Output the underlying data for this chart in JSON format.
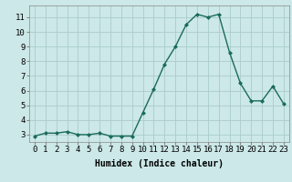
{
  "x": [
    0,
    1,
    2,
    3,
    4,
    5,
    6,
    7,
    8,
    9,
    10,
    11,
    12,
    13,
    14,
    15,
    16,
    17,
    18,
    19,
    20,
    21,
    22,
    23
  ],
  "y": [
    2.9,
    3.1,
    3.1,
    3.2,
    3.0,
    3.0,
    3.1,
    2.9,
    2.9,
    2.9,
    4.5,
    6.1,
    7.8,
    9.0,
    10.5,
    11.2,
    11.0,
    11.2,
    8.6,
    6.5,
    5.3,
    5.3,
    6.3,
    5.1
  ],
  "line_color": "#1a6b5a",
  "marker": "D",
  "marker_size": 2,
  "bg_color": "#cce8e8",
  "grid_color": "#aacccc",
  "xlabel": "Humidex (Indice chaleur)",
  "xlim": [
    -0.5,
    23.5
  ],
  "ylim": [
    2.5,
    11.8
  ],
  "yticks": [
    3,
    4,
    5,
    6,
    7,
    8,
    9,
    10,
    11
  ],
  "xtick_labels": [
    "0",
    "1",
    "2",
    "3",
    "4",
    "5",
    "6",
    "7",
    "8",
    "9",
    "10",
    "11",
    "12",
    "13",
    "14",
    "15",
    "16",
    "17",
    "18",
    "19",
    "20",
    "21",
    "22",
    "23"
  ],
  "xlabel_fontsize": 7,
  "tick_fontsize": 6.5,
  "linewidth": 1.0
}
